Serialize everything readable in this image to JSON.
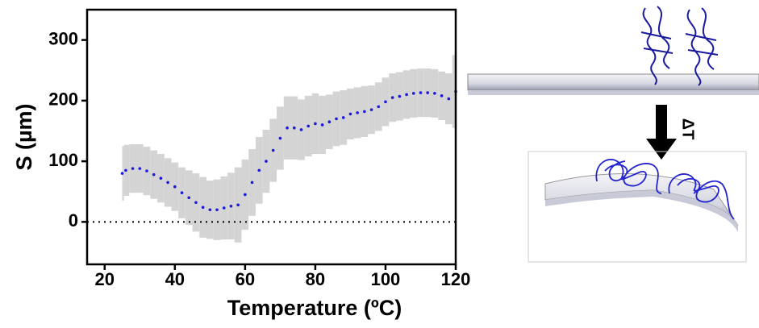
{
  "chart_data": {
    "type": "line",
    "x_label": "Temperature (ºC)",
    "y_label": "S (µm)",
    "xlim": [
      15,
      120
    ],
    "ylim": [
      -70,
      350
    ],
    "xticks": [
      20,
      40,
      60,
      80,
      100,
      120
    ],
    "yticks": [
      0,
      100,
      200,
      300
    ],
    "hline": 0,
    "x": [
      25,
      26,
      28,
      30,
      32,
      34,
      36,
      38,
      40,
      42,
      44,
      46,
      48,
      50,
      52,
      54,
      56,
      58,
      60,
      62,
      64,
      66,
      68,
      70,
      72,
      74,
      76,
      78,
      80,
      82,
      84,
      86,
      88,
      90,
      92,
      94,
      96,
      98,
      100,
      102,
      104,
      106,
      108,
      110,
      112,
      114,
      116,
      118,
      120
    ],
    "series": [
      {
        "color": "#1a1adc",
        "band_color": "#d4d4d4",
        "values": [
          80,
          85,
          88,
          88,
          84,
          78,
          72,
          65,
          58,
          48,
          40,
          32,
          24,
          20,
          20,
          23,
          26,
          28,
          45,
          65,
          85,
          100,
          118,
          138,
          155,
          155,
          152,
          158,
          162,
          160,
          165,
          170,
          172,
          178,
          180,
          182,
          185,
          190,
          198,
          205,
          207,
          210,
          212,
          213,
          213,
          212,
          208,
          203,
          215
        ],
        "error": [
          45,
          42,
          40,
          40,
          40,
          40,
          40,
          40,
          40,
          42,
          45,
          48,
          50,
          48,
          50,
          52,
          55,
          62,
          58,
          55,
          55,
          52,
          52,
          52,
          52,
          52,
          50,
          50,
          50,
          48,
          45,
          45,
          45,
          42,
          42,
          42,
          40,
          40,
          40,
          40,
          40,
          40,
          40,
          40,
          40,
          40,
          40,
          42,
          60
        ]
      }
    ]
  },
  "schematic": {
    "label": "ΔT"
  }
}
